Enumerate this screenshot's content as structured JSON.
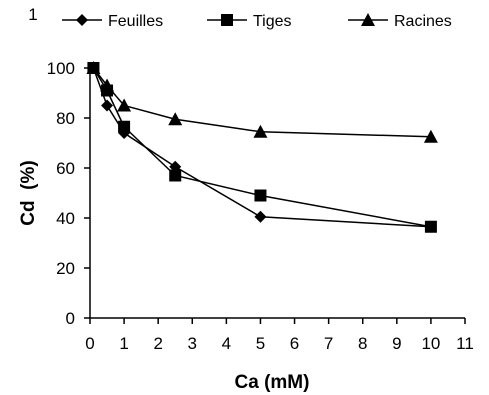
{
  "chart_data": {
    "type": "line",
    "title": "",
    "corner_label": "1",
    "xlabel": "Ca (mM)",
    "ylabel": "Cd  (%)",
    "xlim": [
      0,
      11
    ],
    "ylim": [
      0,
      100
    ],
    "xticks": [
      0,
      1,
      2,
      3,
      4,
      5,
      6,
      7,
      8,
      9,
      10,
      11
    ],
    "yticks": [
      0,
      20,
      40,
      60,
      80,
      100
    ],
    "grid": false,
    "legend_position": "top",
    "series": [
      {
        "name": "Feuilles",
        "marker": "diamond",
        "x": [
          0.1,
          0.5,
          1,
          2.5,
          5,
          10
        ],
        "y": [
          100,
          85,
          74,
          60.5,
          40.5,
          36.5
        ]
      },
      {
        "name": "Tiges",
        "marker": "square",
        "x": [
          0.1,
          0.5,
          1,
          2.5,
          5,
          10
        ],
        "y": [
          100,
          91,
          76.5,
          57,
          49,
          36.5
        ]
      },
      {
        "name": "Racines",
        "marker": "triangle",
        "x": [
          0.1,
          0.5,
          1,
          2.5,
          5,
          10
        ],
        "y": [
          100,
          93,
          85,
          79.5,
          74.5,
          72.5
        ]
      }
    ]
  }
}
